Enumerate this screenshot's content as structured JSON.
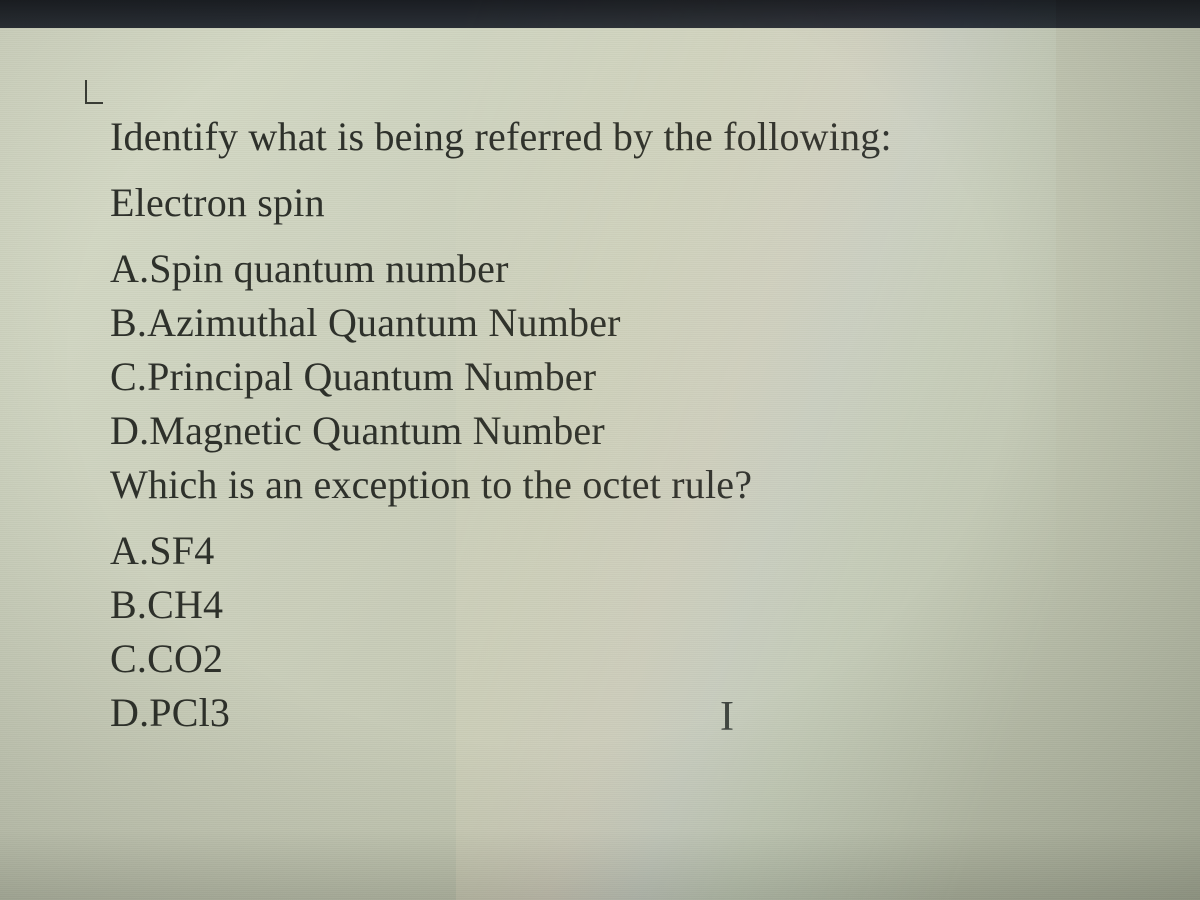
{
  "styling": {
    "background_gradient": [
      "#d8dcc8",
      "#cfd4c0",
      "#c8ccb8",
      "#c0c5b0",
      "#b8bda8"
    ],
    "text_color": "#2e312b",
    "font_family": "Georgia, Times New Roman, serif",
    "font_size_pt": 30,
    "line_height": 1.35,
    "top_bar_color": "#1a1d22",
    "rainbow_overlay_colors": [
      "#ffe6b4",
      "#ffc8d2",
      "#c8d2ff",
      "#bee6dc"
    ]
  },
  "questions": [
    {
      "prompt_line1": "Identify what is being referred by the following:",
      "prompt_line2": "Electron spin",
      "options": [
        {
          "letter": "A",
          "text": "Spin quantum number"
        },
        {
          "letter": "B",
          "text": "Azimuthal Quantum Number"
        },
        {
          "letter": "C",
          "text": "Principal Quantum Number"
        },
        {
          "letter": "D",
          "text": "Magnetic Quantum Number"
        }
      ]
    },
    {
      "prompt_line1": "Which is an exception to the octet rule?",
      "options": [
        {
          "letter": "A",
          "text": "SF4"
        },
        {
          "letter": "B",
          "text": "CH4"
        },
        {
          "letter": "C",
          "text": "CO2"
        },
        {
          "letter": "D",
          "text": "PCl3"
        }
      ]
    }
  ],
  "text_cursor_glyph": "I"
}
